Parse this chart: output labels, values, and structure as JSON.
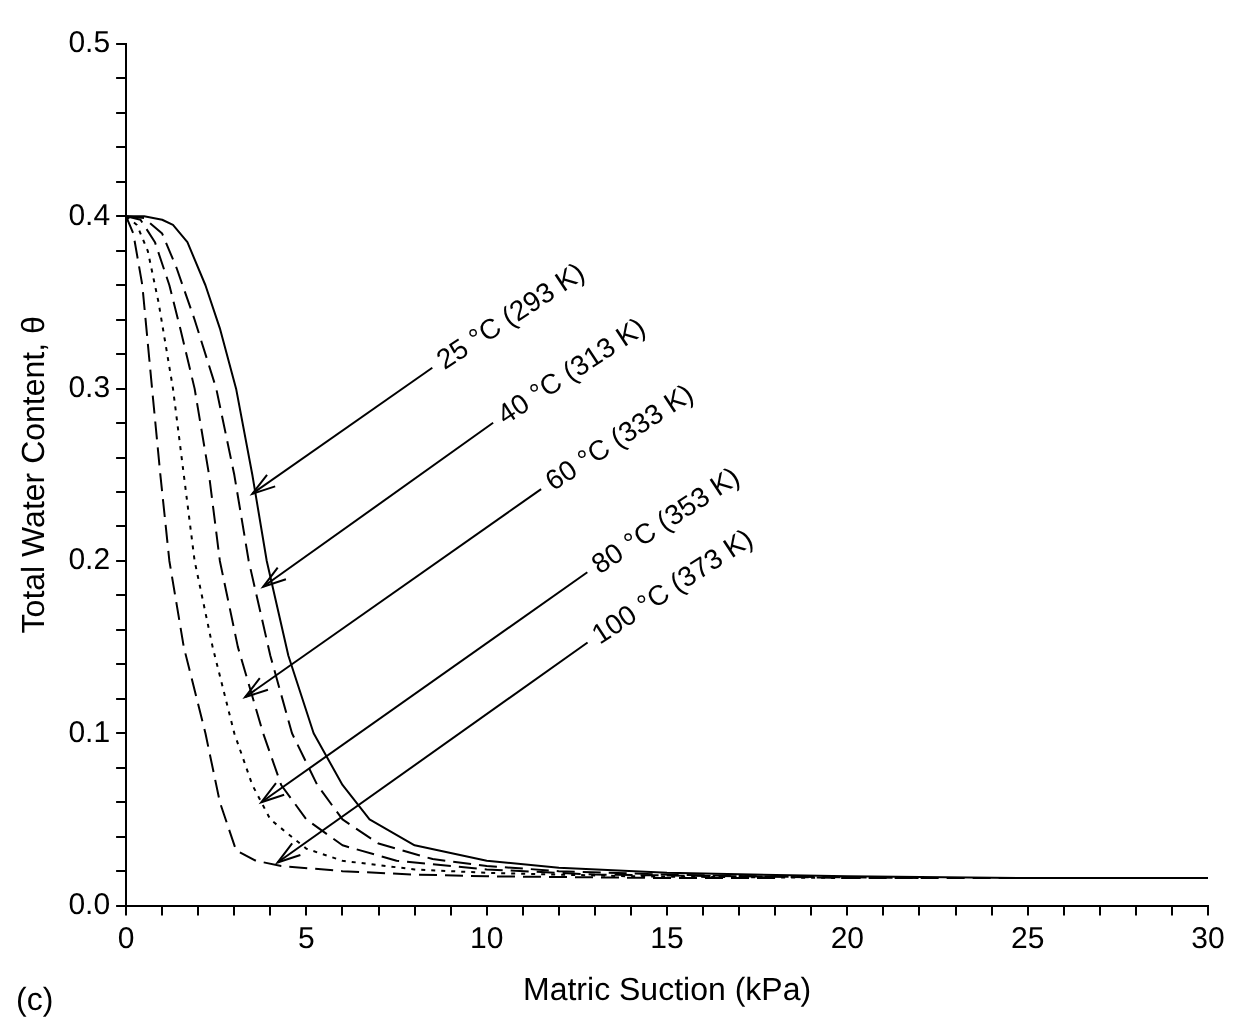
{
  "chart_data": {
    "type": "line",
    "xlabel": "Matric Suction (kPa)",
    "ylabel": "Total Water Content, θ",
    "xlim": [
      0,
      30
    ],
    "ylim": [
      0,
      0.5
    ],
    "xticks": [
      0,
      {
        "value": 1,
        "label": null
      },
      {
        "value": 2,
        "label": null
      },
      {
        "value": 3,
        "label": null
      },
      {
        "value": 4,
        "label": null
      },
      5,
      {
        "value": 6,
        "label": null
      },
      {
        "value": 7,
        "label": null
      },
      {
        "value": 8,
        "label": null
      },
      {
        "value": 9,
        "label": null
      },
      10,
      {
        "value": 11,
        "label": null
      },
      {
        "value": 12,
        "label": null
      },
      {
        "value": 13,
        "label": null
      },
      {
        "value": 14,
        "label": null
      },
      15,
      {
        "value": 16,
        "label": null
      },
      {
        "value": 17,
        "label": null
      },
      {
        "value": 18,
        "label": null
      },
      {
        "value": 19,
        "label": null
      },
      20,
      {
        "value": 21,
        "label": null
      },
      {
        "value": 22,
        "label": null
      },
      {
        "value": 23,
        "label": null
      },
      {
        "value": 24,
        "label": null
      },
      25,
      {
        "value": 26,
        "label": null
      },
      {
        "value": 27,
        "label": null
      },
      {
        "value": 28,
        "label": null
      },
      {
        "value": 29,
        "label": null
      },
      30
    ],
    "yticks": [
      {
        "value": 0,
        "label": "0.0"
      },
      {
        "value": 0.02,
        "label": null
      },
      {
        "value": 0.04,
        "label": null
      },
      {
        "value": 0.06,
        "label": null
      },
      {
        "value": 0.08,
        "label": null
      },
      0.1,
      {
        "value": 0.12,
        "label": null
      },
      {
        "value": 0.14,
        "label": null
      },
      {
        "value": 0.16,
        "label": null
      },
      {
        "value": 0.18,
        "label": null
      },
      0.2,
      {
        "value": 0.22,
        "label": null
      },
      {
        "value": 0.24,
        "label": null
      },
      {
        "value": 0.26,
        "label": null
      },
      {
        "value": 0.28,
        "label": null
      },
      0.3,
      {
        "value": 0.32,
        "label": null
      },
      {
        "value": 0.34,
        "label": null
      },
      {
        "value": 0.36,
        "label": null
      },
      {
        "value": 0.38,
        "label": null
      },
      0.4,
      {
        "value": 0.42,
        "label": null
      },
      {
        "value": 0.44,
        "label": null
      },
      {
        "value": 0.46,
        "label": null
      },
      {
        "value": 0.48,
        "label": null
      },
      0.5
    ],
    "grid": false,
    "legend": false,
    "marker": "none",
    "series": [
      {
        "color": "#000000",
        "line_style": "solid",
        "x": [
          0,
          0.5,
          1,
          1.3,
          1.7,
          2.2,
          2.6,
          3.05,
          3.5,
          3.9,
          4.5,
          5.2,
          6,
          6.75,
          8,
          10,
          12,
          15,
          20,
          25,
          30
        ],
        "values": [
          0.4,
          0.4,
          0.398,
          0.395,
          0.385,
          0.36,
          0.335,
          0.3,
          0.25,
          0.2,
          0.145,
          0.1,
          0.07,
          0.05,
          0.035,
          0.026,
          0.022,
          0.019,
          0.017,
          0.016,
          0.016
        ]
      },
      {
        "color": "#000000",
        "line_style": "dashed",
        "x": [
          0,
          0.5,
          1,
          1.4,
          1.9,
          2.5,
          3,
          3.4,
          4,
          4.6,
          5.3,
          6,
          7,
          8.5,
          10,
          12,
          15,
          20,
          25
        ],
        "values": [
          0.4,
          0.399,
          0.39,
          0.37,
          0.34,
          0.3,
          0.25,
          0.2,
          0.145,
          0.1,
          0.07,
          0.05,
          0.036,
          0.027,
          0.023,
          0.02,
          0.018,
          0.016,
          0.016
        ]
      },
      {
        "color": "#000000",
        "line_style": "dashed",
        "x": [
          0,
          0.4,
          0.8,
          1.2,
          1.5,
          1.9,
          2.3,
          2.6,
          3.1,
          3.8,
          4.3,
          5,
          6,
          7.5,
          10,
          13,
          17,
          22
        ],
        "values": [
          0.4,
          0.398,
          0.385,
          0.36,
          0.335,
          0.3,
          0.25,
          0.2,
          0.15,
          0.1,
          0.07,
          0.05,
          0.035,
          0.026,
          0.021,
          0.018,
          0.017,
          0.016
        ]
      },
      {
        "color": "#000000",
        "line_style": "dotted",
        "x": [
          0,
          0.3,
          0.6,
          0.9,
          1.3,
          1.6,
          1.9,
          2.4,
          3,
          3.5,
          4,
          5,
          6,
          8,
          10,
          14,
          20
        ],
        "values": [
          0.4,
          0.395,
          0.38,
          0.35,
          0.3,
          0.25,
          0.2,
          0.15,
          0.1,
          0.07,
          0.05,
          0.033,
          0.026,
          0.021,
          0.019,
          0.017,
          0.016
        ]
      },
      {
        "color": "#000000",
        "line_style": "dashed",
        "x": [
          0,
          0.2,
          0.45,
          0.72,
          0.95,
          1.2,
          1.6,
          2.2,
          2.6,
          3.05,
          3.6,
          4.3,
          6,
          8,
          10,
          15,
          18
        ],
        "values": [
          0.4,
          0.39,
          0.36,
          0.3,
          0.25,
          0.2,
          0.15,
          0.1,
          0.06,
          0.032,
          0.026,
          0.023,
          0.02,
          0.018,
          0.017,
          0.016,
          0.016
        ]
      }
    ],
    "annotations": [
      {
        "text": "25 °C (293 K)",
        "x": 3.5,
        "y": 0.239
      },
      {
        "text": "40 °C (313 K)",
        "x": 3.8,
        "y": 0.185
      },
      {
        "text": "60 °C (333 K)",
        "x": 3.3,
        "y": 0.121
      },
      {
        "text": "80 °C (353 K)",
        "x": 3.75,
        "y": 0.06
      },
      {
        "text": "100 °C (373 K)",
        "x": 4.2,
        "y": 0.025
      },
      "(c)"
    ]
  }
}
